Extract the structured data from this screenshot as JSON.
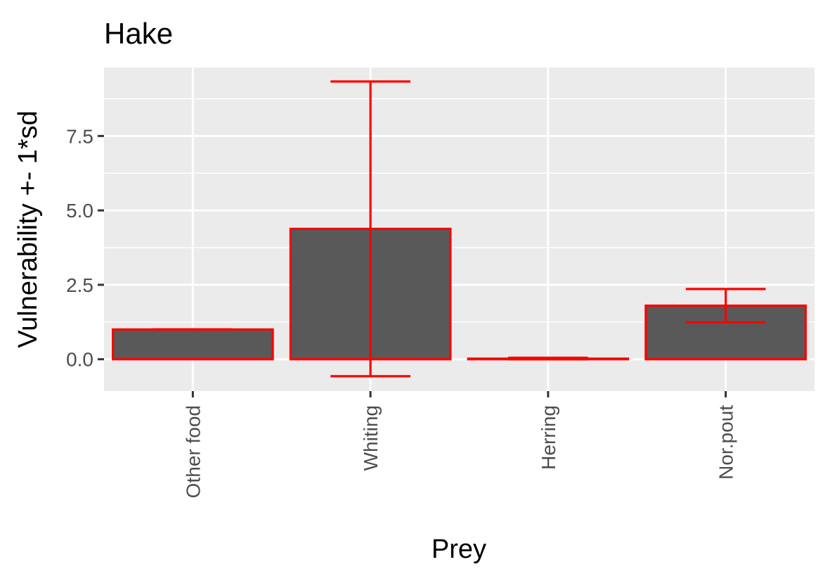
{
  "chart_data": {
    "type": "bar",
    "title": "Hake",
    "xlabel": "Prey",
    "ylabel": "Vulnerability +- 1*sd",
    "categories": [
      "Other food",
      "Whiting",
      "Herring",
      "Nor.pout"
    ],
    "values": [
      1.0,
      4.38,
      0.02,
      1.8
    ],
    "error_low": [
      1.0,
      -0.57,
      0.0,
      1.24
    ],
    "error_high": [
      1.0,
      9.33,
      0.05,
      2.36
    ],
    "ylim": [
      -1.07,
      9.8
    ],
    "yticks": [
      0.0,
      2.5,
      5.0,
      7.5
    ],
    "ytick_labels": [
      "0.0",
      "2.5",
      "5.0",
      "7.5"
    ],
    "grid": true,
    "colors": {
      "bar_fill": "#595959",
      "bar_outline": "#ff0000",
      "error_bar": "#ff0000",
      "panel_background": "#ebebeb",
      "grid": "#ffffff"
    }
  }
}
